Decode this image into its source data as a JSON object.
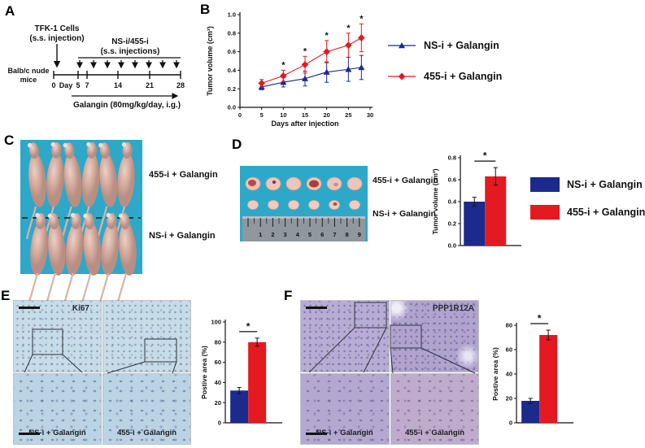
{
  "colors": {
    "navy": "#1b2a8c",
    "red": "#e51a20",
    "photo_bg": "#2ea8c9",
    "text": "#111111"
  },
  "panels": {
    "a": {
      "letter": "A",
      "cells_label_1": "TFK-1 Cells",
      "cells_label_2": "(s.s. injection)",
      "inj_label_1": "NS-i/455-i",
      "inj_label_2": "(s.s. injections)",
      "mice_label_1": "Balb/c nude",
      "mice_label_2": "mice",
      "tick_0": "0",
      "tick_day": "Day",
      "tick_5": "5",
      "tick_7": "7",
      "tick_14": "14",
      "tick_21": "21",
      "tick_28": "28",
      "galangin_label": "Galangin (80mg/kg/day, i.g.)"
    },
    "b": {
      "letter": "B"
    },
    "c": {
      "letter": "C",
      "top_label": "455-i + Galangin",
      "bottom_label": "NS-i + Galangin"
    },
    "d": {
      "letter": "D",
      "top_label": "455-i + Galangin",
      "bottom_label": "NS-i + Galangin",
      "ruler_numbers": [
        "1",
        "2",
        "3",
        "4",
        "5",
        "6",
        "7",
        "8",
        "9"
      ],
      "legend": [
        {
          "label": "NS-i + Galangin",
          "color": "navy"
        },
        {
          "label": "455-i + Galangin",
          "color": "red"
        }
      ]
    },
    "e": {
      "letter": "E",
      "marker_label": "Ki67",
      "left_label": "NS-i + Galangin",
      "right_label": "455-i + Galangin"
    },
    "f": {
      "letter": "F",
      "marker_label": "PPP1R12A",
      "left_label": "NS-i + Galangin",
      "right_label": "455-i + Galangin"
    }
  },
  "legend_b": [
    {
      "label": "NS-i + Galangin",
      "color": "navy",
      "marker": "triangle"
    },
    {
      "label": "455-i + Galangin",
      "color": "red",
      "marker": "diamond"
    }
  ],
  "chart_data": [
    {
      "id": "b-line",
      "type": "line",
      "title": "",
      "xlabel": "Days after injection",
      "ylabel": "Tumor volume (cm³)",
      "xlim": [
        0,
        30
      ],
      "xticks": [
        0,
        5,
        10,
        15,
        20,
        25,
        30
      ],
      "xtick_labels": [
        "0",
        "5",
        "10",
        "15",
        "20",
        "25",
        "30"
      ],
      "ylim": [
        0,
        1.0
      ],
      "yticks": [
        0,
        0.2,
        0.4,
        0.6,
        0.8,
        1.0
      ],
      "ytick_labels": [
        "0.0",
        "0.2",
        "0.4",
        "0.6",
        "0.8",
        "1.0"
      ],
      "x": [
        5,
        10,
        15,
        20,
        25,
        28
      ],
      "series": [
        {
          "name": "NS-i + Galangin",
          "color": "navy",
          "marker": "triangle",
          "values": [
            0.22,
            0.27,
            0.31,
            0.38,
            0.41,
            0.43
          ],
          "errors": [
            0.03,
            0.05,
            0.08,
            0.11,
            0.13,
            0.13
          ]
        },
        {
          "name": "455-i + Galangin",
          "color": "red",
          "marker": "diamond",
          "values": [
            0.26,
            0.34,
            0.46,
            0.6,
            0.67,
            0.75
          ],
          "errors": [
            0.04,
            0.06,
            0.09,
            0.12,
            0.13,
            0.15
          ]
        }
      ],
      "significance": {
        "symbol": "*",
        "x": [
          10,
          15,
          20,
          25,
          28
        ],
        "above_series": 1
      },
      "grid": false,
      "legend_position": "right"
    },
    {
      "id": "d-bar",
      "type": "bar",
      "ylabel": "Tumor volume (cm³)",
      "ylim": [
        0,
        0.8
      ],
      "yticks": [
        0,
        0.2,
        0.4,
        0.6,
        0.8
      ],
      "ytick_labels": [
        "0.0",
        "0.2",
        "0.4",
        "0.6",
        "0.8"
      ],
      "categories": [
        "NS-i + Galangin",
        "455-i + Galangin"
      ],
      "values": [
        0.4,
        0.63
      ],
      "errors": [
        0.04,
        0.08
      ],
      "bar_colors": [
        "navy",
        "red"
      ],
      "significance": {
        "symbol": "*"
      }
    },
    {
      "id": "e-bar",
      "type": "bar",
      "ylabel": "Postive area (%)",
      "ylim": [
        0,
        100
      ],
      "yticks": [
        0,
        20,
        40,
        60,
        80,
        100
      ],
      "ytick_labels": [
        "0",
        "20",
        "40",
        "60",
        "80",
        "100"
      ],
      "categories": [
        "NS-i + Galangin",
        "455-i + Galangin"
      ],
      "values": [
        32,
        80
      ],
      "errors": [
        3,
        4
      ],
      "bar_colors": [
        "navy",
        "red"
      ],
      "significance": {
        "symbol": "*"
      }
    },
    {
      "id": "f-bar",
      "type": "bar",
      "ylabel": "Postive area (%)",
      "ylim": [
        0,
        80
      ],
      "yticks": [
        0,
        20,
        40,
        60,
        80
      ],
      "ytick_labels": [
        "0",
        "20",
        "40",
        "60",
        "80"
      ],
      "categories": [
        "NS-i + Galangin",
        "455-i + Galangin"
      ],
      "values": [
        18,
        72
      ],
      "errors": [
        2,
        4
      ],
      "bar_colors": [
        "navy",
        "red"
      ],
      "significance": {
        "symbol": "*"
      }
    }
  ]
}
